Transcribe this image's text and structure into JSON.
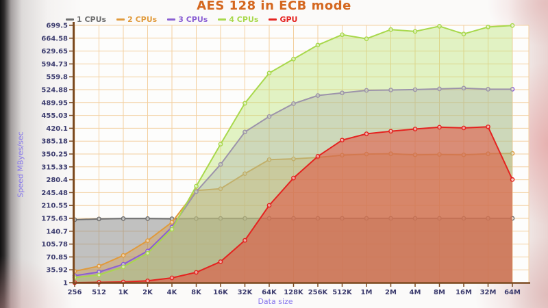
{
  "title": "AES 128 in ECB mode",
  "axes": {
    "y_label": "Speed MByes/sec",
    "x_label": "Data size"
  },
  "colors": {
    "title": "#d4671f",
    "tick_label": "#3c3c6e",
    "axis_title": "#8878ec",
    "grid": "#f3cf9e",
    "axis": "#7b4a20",
    "plot_bg": "#fdfdfc"
  },
  "chart_data": {
    "type": "line",
    "title": "AES 128 in ECB mode",
    "xlabel": "Data size",
    "ylabel": "Speed MByes/sec",
    "legend_position": "top",
    "grid": true,
    "ylim": [
      1,
      699.5
    ],
    "x_categories": [
      "256",
      "512",
      "1K",
      "2K",
      "4K",
      "8K",
      "16K",
      "32K",
      "64K",
      "128K",
      "256K",
      "512K",
      "1M",
      "2M",
      "4M",
      "8M",
      "16M",
      "32M",
      "64M"
    ],
    "y_ticks": [
      "699.5",
      "664.58",
      "629.65",
      "594.73",
      "559.8",
      "524.88",
      "489.95",
      "455.03",
      "420.1",
      "385.18",
      "350.25",
      "315.33",
      "280.4",
      "245.48",
      "210.55",
      "175.63",
      "140.7",
      "105.78",
      "70.85",
      "35.92",
      "1"
    ],
    "series": [
      {
        "name": "1 CPUs",
        "color": "#6e6e6e",
        "fill": "rgba(120,120,120,0.45)",
        "values": [
          172,
          174,
          175,
          175,
          174.5,
          175,
          175.5,
          175.5,
          175.6,
          175.6,
          175.6,
          175.6,
          175.6,
          175.6,
          175.6,
          175.6,
          175.6,
          175.6,
          175.6
        ]
      },
      {
        "name": "2 CPUs",
        "color": "#e09a3c",
        "fill": "rgba(224,154,60,0.35)",
        "values": [
          32,
          46,
          75,
          115,
          165,
          251,
          256,
          297,
          335,
          337,
          341,
          347,
          350,
          351,
          348,
          349,
          348,
          351,
          352
        ]
      },
      {
        "name": "3 CPUs",
        "color": "#8a5fd2",
        "fill": "rgba(151,122,204,0.32)",
        "values": [
          20,
          30,
          51,
          87,
          152,
          248,
          322,
          410,
          452,
          487,
          509,
          516,
          523,
          524,
          525,
          527,
          529,
          526,
          526
        ]
      },
      {
        "name": "4 CPUs",
        "color": "#a8d84c",
        "fill": "rgba(183,224,110,0.40)",
        "values": [
          15,
          22,
          44,
          81,
          146,
          263,
          377,
          488,
          570,
          608,
          646,
          674,
          663,
          688,
          683,
          697,
          676,
          695,
          699
        ]
      },
      {
        "name": "GPU",
        "color": "#e42320",
        "fill": "rgba(229,66,52,0.50)",
        "values": [
          1,
          2,
          3,
          6,
          14,
          29,
          58,
          116,
          211,
          285,
          344,
          388,
          405,
          412,
          418,
          423,
          421,
          424,
          281
        ]
      }
    ]
  }
}
